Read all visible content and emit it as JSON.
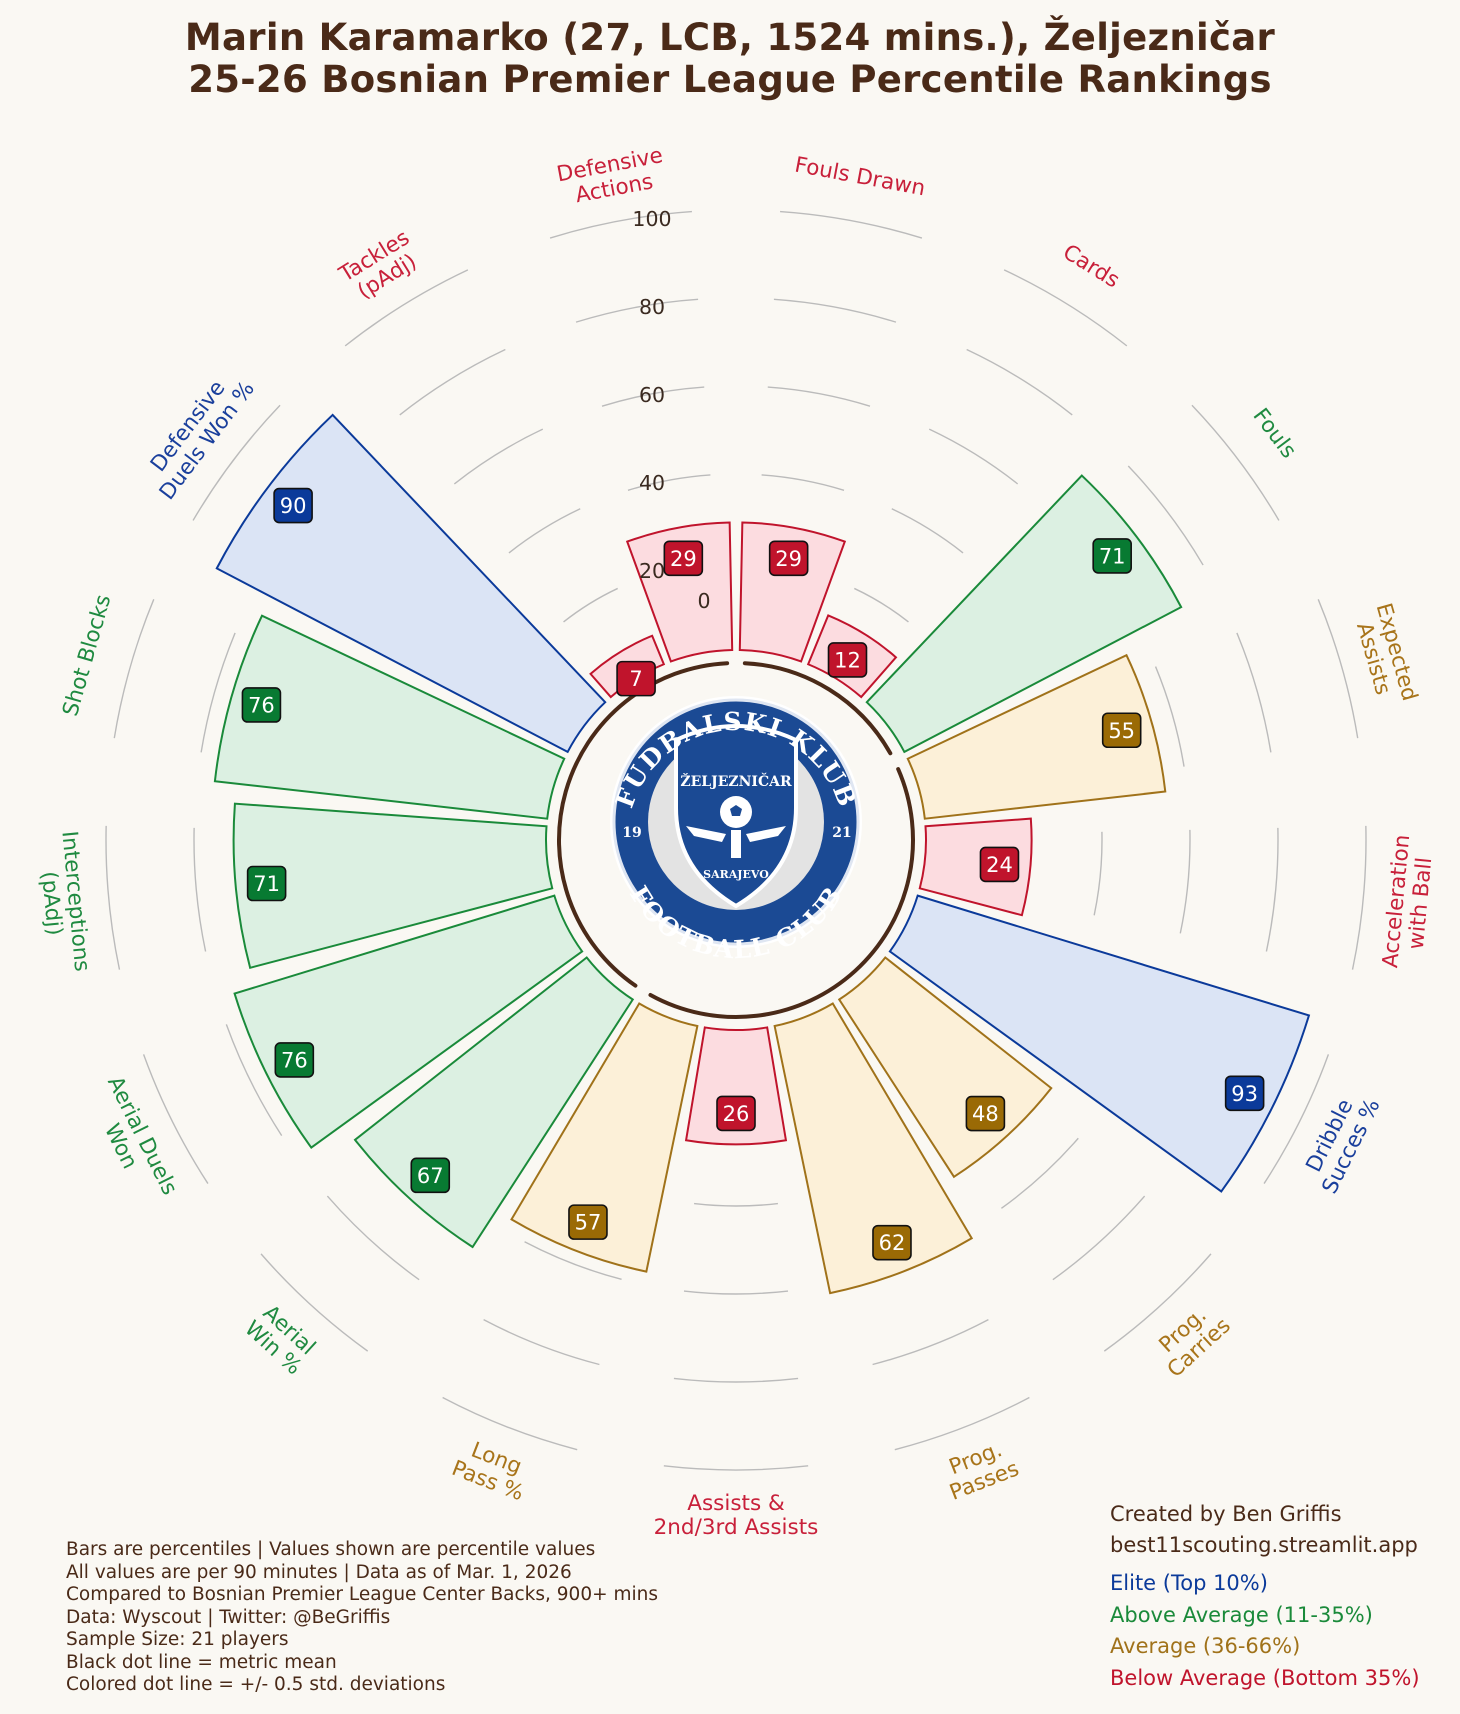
{
  "title": {
    "line1": "Marin Karamarko (27, LCB, 1524 mins.), Željezničar",
    "line2": "25-26 Bosnian Premier League Percentile Rankings"
  },
  "logo": {
    "arc_top": "FUDBALSKI KLUB",
    "arc_bottom": "FOOTBALL CLUB",
    "name": "ŽELJEZNIČAR",
    "city": "SARAJEVO",
    "year_left": "19",
    "year_right": "21"
  },
  "notes": [
    "Bars are percentiles | Values shown are percentile values",
    "All values are per 90 minutes | Data as of Mar. 1, 2026",
    "Compared to Bosnian Premier League Center Backs, 900+ mins",
    "Data: Wyscout | Twitter: @BeGriffis",
    "Sample Size: 21 players",
    "Black dot line = metric mean",
    "Colored dot line = +/- 0.5 std. deviations"
  ],
  "credit": [
    "Created by Ben Griffis",
    "best11scouting.streamlit.app"
  ],
  "legend": [
    {
      "label": "Elite (Top 10%)",
      "color": "#0b3a9a"
    },
    {
      "label": "Above Average (11-35%)",
      "color": "#1a8a3a"
    },
    {
      "label": "Average (36-66%)",
      "color": "#a0721a"
    },
    {
      "label": "Below Average (Bottom 35%)",
      "color": "#c0142c"
    }
  ],
  "colors": {
    "elite": {
      "stroke": "#0b3a9a",
      "fill": "#dbe4f5",
      "badge": "#0b3a9a",
      "text": "#1a3f9c"
    },
    "above": {
      "stroke": "#1a8a3a",
      "fill": "#dcf0e2",
      "badge": "#087a32",
      "text": "#1f8a40"
    },
    "average": {
      "stroke": "#a0721a",
      "fill": "#fcf0d8",
      "badge": "#9a6a05",
      "text": "#a8741a"
    },
    "below": {
      "stroke": "#c0142c",
      "fill": "#fcdce0",
      "badge": "#c0142c",
      "text": "#c8203a"
    },
    "arc": "#4a2a18",
    "grid": "#bbbbbb"
  },
  "chart_data": {
    "type": "polar-bar",
    "rlim": [
      0,
      100
    ],
    "rticks": [
      0,
      20,
      40,
      60,
      80,
      100
    ],
    "metrics": [
      {
        "label": "Fouls Drawn",
        "value": 29,
        "tier": "below"
      },
      {
        "label": "Cards",
        "value": 12,
        "tier": "below"
      },
      {
        "label": "Fouls",
        "value": 71,
        "tier": "above"
      },
      {
        "label": "Expected\nAssists",
        "value": 55,
        "tier": "average"
      },
      {
        "label": "Acceleration\nwith Ball",
        "value": 24,
        "tier": "below"
      },
      {
        "label": "Dribble\nSucces %",
        "value": 93,
        "tier": "elite"
      },
      {
        "label": "Prog.\nCarries",
        "value": 48,
        "tier": "average"
      },
      {
        "label": "Prog.\nPasses",
        "value": 62,
        "tier": "average"
      },
      {
        "label": "Assists &\n2nd/3rd Assists",
        "value": 26,
        "tier": "below"
      },
      {
        "label": "Long\nPass %",
        "value": 57,
        "tier": "average"
      },
      {
        "label": "Aerial\nWin %",
        "value": 67,
        "tier": "above"
      },
      {
        "label": "Aerial Duels\nWon",
        "value": 76,
        "tier": "above"
      },
      {
        "label": "Interceptions\n(pAdj)",
        "value": 71,
        "tier": "above"
      },
      {
        "label": "Shot Blocks",
        "value": 76,
        "tier": "above"
      },
      {
        "label": "Defensive\nDuels Won %",
        "value": 90,
        "tier": "elite"
      },
      {
        "label": "Tackles\n(pAdj)",
        "value": 7,
        "tier": "below"
      },
      {
        "label": "Defensive\nActions",
        "value": 29,
        "tier": "below"
      }
    ],
    "groups": [
      {
        "name": "",
        "start": 0,
        "end": 2
      },
      {
        "name": "",
        "start": 3,
        "end": 9
      },
      {
        "name": "",
        "start": 10,
        "end": 16
      }
    ]
  }
}
